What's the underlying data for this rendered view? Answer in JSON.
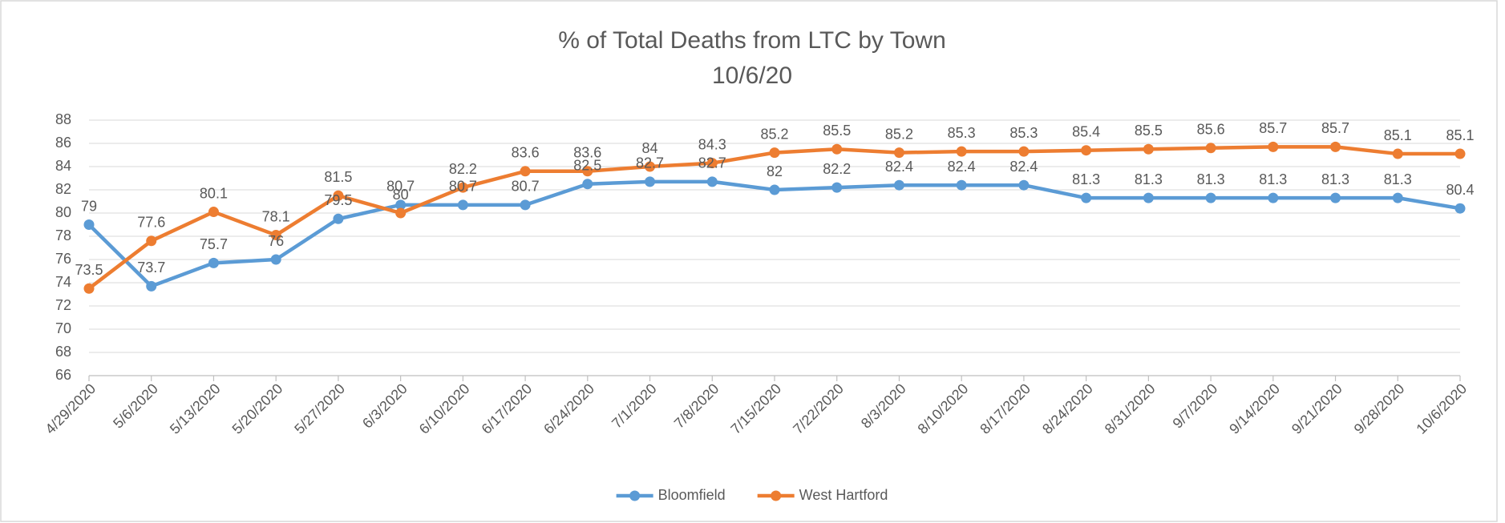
{
  "chart_data": {
    "type": "line",
    "title": "% of Total Deaths from LTC by Town",
    "subtitle": "10/6/20",
    "categories": [
      "4/29/2020",
      "5/6/2020",
      "5/13/2020",
      "5/20/2020",
      "5/27/2020",
      "6/3/2020",
      "6/10/2020",
      "6/17/2020",
      "6/24/2020",
      "7/1/2020",
      "7/8/2020",
      "7/15/2020",
      "7/22/2020",
      "8/3/2020",
      "8/10/2020",
      "8/17/2020",
      "8/24/2020",
      "8/31/2020",
      "9/7/2020",
      "9/14/2020",
      "9/21/2020",
      "9/28/2020",
      "10/6/2020"
    ],
    "series": [
      {
        "name": "Bloomfield",
        "color": "#5b9bd5",
        "values": [
          79,
          73.7,
          75.7,
          76,
          79.5,
          80.7,
          80.7,
          80.7,
          82.5,
          82.7,
          82.7,
          82,
          82.2,
          82.4,
          82.4,
          82.4,
          81.3,
          81.3,
          81.3,
          81.3,
          81.3,
          81.3,
          80.4
        ]
      },
      {
        "name": "West Hartford",
        "color": "#ed7d31",
        "values": [
          73.5,
          77.6,
          80.1,
          78.1,
          81.5,
          80,
          82.2,
          83.6,
          83.6,
          84,
          84.3,
          85.2,
          85.5,
          85.2,
          85.3,
          85.3,
          85.4,
          85.5,
          85.6,
          85.7,
          85.7,
          85.1,
          85.1
        ]
      }
    ],
    "ylim": [
      66,
      88
    ],
    "yticks": [
      66,
      68,
      70,
      72,
      74,
      76,
      78,
      80,
      82,
      84,
      86,
      88
    ],
    "grid": true,
    "legend": "bottom"
  }
}
